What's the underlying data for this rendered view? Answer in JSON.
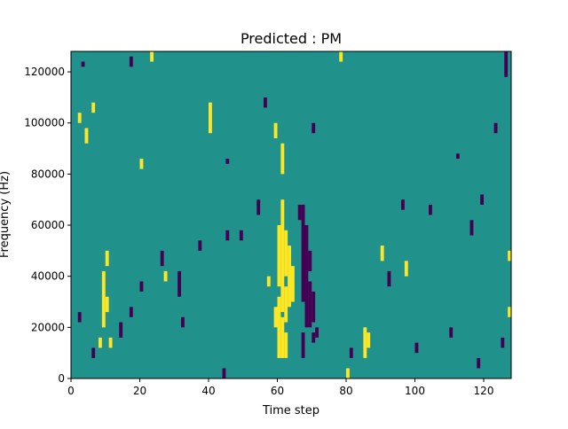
{
  "colors": {
    "background_cell": "#21918c",
    "high_cell": "#fde725",
    "low_cell": "#440154",
    "axis": "#000000"
  },
  "chart_data": {
    "type": "heatmap",
    "title": "Predicted : PM",
    "xlabel": "Time step",
    "ylabel": "Frequency (Hz)",
    "xlim": [
      0,
      128
    ],
    "ylim": [
      0,
      128000
    ],
    "xticks": [
      0,
      20,
      40,
      60,
      80,
      100,
      120
    ],
    "yticks": [
      0,
      20000,
      40000,
      60000,
      80000,
      100000,
      120000
    ],
    "xtick_labels": [
      "0",
      "20",
      "40",
      "60",
      "80",
      "100",
      "120"
    ],
    "ytick_labels": [
      "0",
      "20000",
      "40000",
      "60000",
      "80000",
      "100000",
      "120000"
    ],
    "cell_size": {
      "time_steps": 1,
      "frequency_hz": 2000
    },
    "background_value": 0,
    "value_legend": {
      "1": "yellow (high)",
      "-1": "dark purple (low)"
    },
    "yellow_blocks": [
      [
        60,
        61,
        8000,
        32000
      ],
      [
        60,
        61,
        36000,
        60000
      ],
      [
        61,
        62,
        8000,
        24000
      ],
      [
        61,
        62,
        26000,
        70000
      ],
      [
        62,
        63,
        8000,
        18000
      ],
      [
        62,
        63,
        22000,
        36000
      ],
      [
        62,
        63,
        40000,
        58000
      ],
      [
        61,
        62,
        80000,
        92000
      ],
      [
        63,
        64,
        28000,
        52000
      ],
      [
        64,
        65,
        30000,
        44000
      ],
      [
        8,
        9,
        12000,
        16000
      ],
      [
        9,
        10,
        20000,
        42000
      ],
      [
        10,
        11,
        26000,
        32000
      ],
      [
        11,
        12,
        12000,
        16000
      ],
      [
        10,
        11,
        44000,
        50000
      ],
      [
        57,
        58,
        36000,
        40000
      ],
      [
        59,
        60,
        20000,
        28000
      ],
      [
        85,
        86,
        8000,
        20000
      ],
      [
        86,
        87,
        12000,
        18000
      ],
      [
        90,
        91,
        46000,
        52000
      ],
      [
        97,
        98,
        40000,
        46000
      ],
      [
        6,
        7,
        104000,
        108000
      ],
      [
        4,
        5,
        92000,
        98000
      ],
      [
        2,
        3,
        100000,
        104000
      ],
      [
        20,
        21,
        82000,
        86000
      ],
      [
        23,
        24,
        124000,
        128000
      ],
      [
        40,
        41,
        96000,
        108000
      ],
      [
        59,
        60,
        94000,
        100000
      ],
      [
        78,
        79,
        124000,
        128000
      ],
      [
        127,
        128,
        24000,
        28000
      ],
      [
        127,
        128,
        46000,
        50000
      ],
      [
        80,
        81,
        0,
        4000
      ],
      [
        27,
        28,
        38000,
        42000
      ]
    ],
    "purple_blocks": [
      [
        66,
        67,
        62000,
        68000
      ],
      [
        67,
        68,
        8000,
        18000
      ],
      [
        67,
        68,
        30000,
        68000
      ],
      [
        68,
        69,
        20000,
        60000
      ],
      [
        69,
        70,
        20000,
        38000
      ],
      [
        69,
        70,
        42000,
        50000
      ],
      [
        70,
        71,
        22000,
        34000
      ],
      [
        70,
        71,
        14000,
        18000
      ],
      [
        71,
        72,
        16000,
        20000
      ],
      [
        2,
        3,
        22000,
        26000
      ],
      [
        6,
        7,
        8000,
        12000
      ],
      [
        14,
        15,
        16000,
        22000
      ],
      [
        17,
        18,
        24000,
        28000
      ],
      [
        20,
        21,
        34000,
        38000
      ],
      [
        26,
        27,
        44000,
        50000
      ],
      [
        31,
        32,
        32000,
        42000
      ],
      [
        32,
        33,
        20000,
        24000
      ],
      [
        37,
        38,
        50000,
        54000
      ],
      [
        44,
        45,
        0,
        4000
      ],
      [
        45,
        46,
        54000,
        58000
      ],
      [
        54,
        55,
        64000,
        70000
      ],
      [
        56,
        57,
        106000,
        110000
      ],
      [
        70,
        71,
        96000,
        100000
      ],
      [
        81,
        82,
        8000,
        12000
      ],
      [
        92,
        93,
        36000,
        42000
      ],
      [
        96,
        97,
        66000,
        70000
      ],
      [
        100,
        101,
        10000,
        14000
      ],
      [
        104,
        105,
        64000,
        68000
      ],
      [
        110,
        111,
        16000,
        20000
      ],
      [
        116,
        117,
        56000,
        62000
      ],
      [
        119,
        120,
        68000,
        72000
      ],
      [
        123,
        124,
        96000,
        100000
      ],
      [
        126,
        127,
        118000,
        128000
      ],
      [
        3,
        4,
        122000,
        124000
      ],
      [
        17,
        18,
        122000,
        126000
      ],
      [
        45,
        46,
        84000,
        86000
      ],
      [
        49,
        50,
        54000,
        58000
      ],
      [
        112,
        113,
        86000,
        88000
      ],
      [
        118,
        119,
        4000,
        8000
      ],
      [
        125,
        126,
        12000,
        16000
      ]
    ]
  }
}
